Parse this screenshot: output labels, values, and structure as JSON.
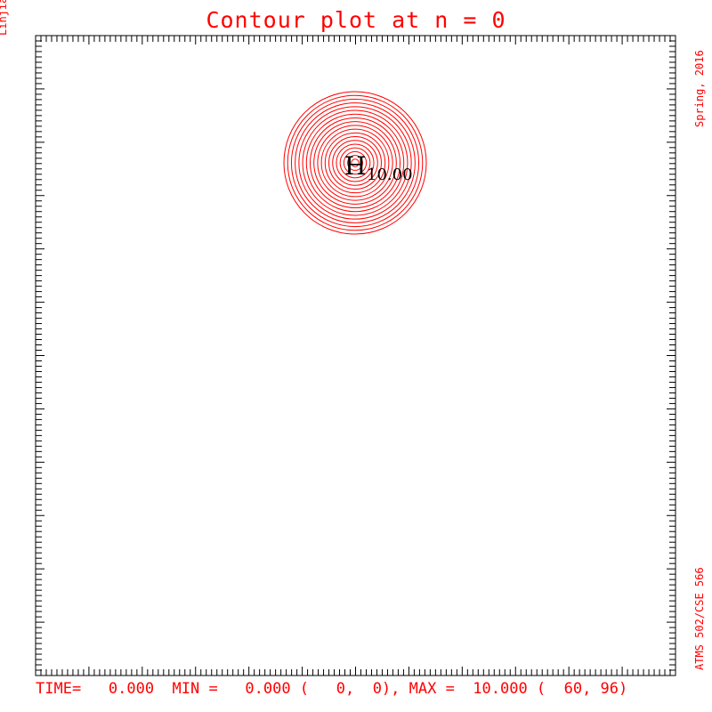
{
  "title": "Contour plot at n = 0",
  "author": "Linjian Ma",
  "semester": "Spring, 2016",
  "course": "ATMS 502/CSE 566",
  "status": "TIME=   0.000  MIN =   0.000 (   0,  0), MAX =  10.000 (  60, 96)",
  "colors": {
    "contour": "#ff0000",
    "marker": "#000000",
    "frame": "#000000"
  },
  "chart_data": {
    "type": "contour",
    "time": 0.0,
    "min": {
      "value": 0.0,
      "i": 0,
      "j": 0
    },
    "max": {
      "value": 10.0,
      "i": 60,
      "j": 96
    },
    "high_marker": {
      "label": "H",
      "value": "10.00"
    },
    "contour_count": 19
  }
}
